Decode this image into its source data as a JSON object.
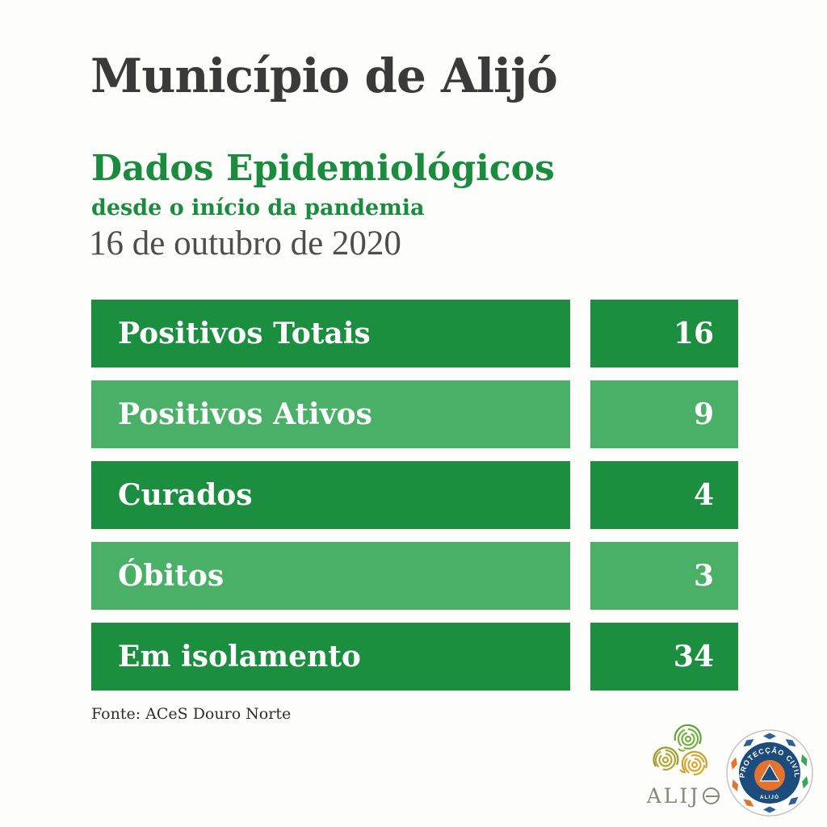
{
  "page": {
    "background": "#fdfdfb"
  },
  "colors": {
    "dark_green": "#1b8e3f",
    "light_green": "#4ab068",
    "text_green": "#1b8c3e",
    "title_charcoal": "#3a3a3a",
    "date_gray": "#4e4e4e",
    "bar_text": "#ffffff"
  },
  "header": {
    "title": "Município de Alijó",
    "subtitle": "Dados Epidemiológicos",
    "subtitle_secondary": "desde o início da pandemia",
    "date": "16 de outubro de 2020"
  },
  "stats": {
    "rows": [
      {
        "label": "Positivos Totais",
        "value": "16",
        "tone": "dark"
      },
      {
        "label": "Positivos Ativos",
        "value": "9",
        "tone": "light"
      },
      {
        "label": "Curados",
        "value": "4",
        "tone": "dark"
      },
      {
        "label": "Óbitos",
        "value": "3",
        "tone": "light"
      },
      {
        "label": "Em isolamento",
        "value": "34",
        "tone": "dark"
      }
    ]
  },
  "footer": {
    "source": "Fonte: ACeS Douro Norte",
    "alijo_logo": {
      "wordmark": "ALIJ"
    },
    "civil_logo": {
      "arc_text": "PROTECÇÃO CIVIL",
      "bottom_text": "ALIJÓ"
    }
  },
  "chart_data": {
    "type": "table",
    "title": "Dados Epidemiológicos desde o início da pandemia",
    "subtitle": "Município de Alijó — 16 de outubro de 2020",
    "categories": [
      "Positivos Totais",
      "Positivos Ativos",
      "Curados",
      "Óbitos",
      "Em isolamento"
    ],
    "values": [
      16,
      9,
      4,
      3,
      34
    ],
    "source": "Fonte: ACeS Douro Norte"
  }
}
